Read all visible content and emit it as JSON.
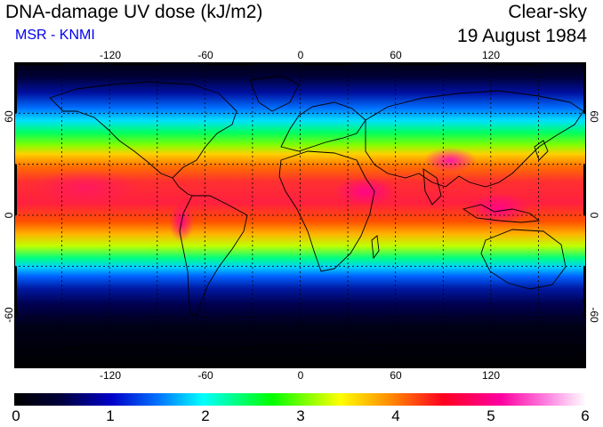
{
  "header": {
    "title": "DNA-damage UV dose (kJ/m2)",
    "source": "MSR - KNMI",
    "sky_condition": "Clear-sky",
    "date": "19 August 1984"
  },
  "map": {
    "projection": "equirectangular",
    "lon_range": [
      -180,
      180
    ],
    "lat_range": [
      -90,
      90
    ],
    "lon_ticks": [
      "-120",
      "-60",
      "0",
      "60",
      "120"
    ],
    "lat_ticks_left": [
      "60",
      "0",
      "-60"
    ],
    "lat_ticks_right": [
      "60",
      "0",
      "-60"
    ],
    "gridlines": "dashed every 30 degrees"
  },
  "colorbar": {
    "labels": [
      "0",
      "1",
      "2",
      "3",
      "4",
      "5",
      "6"
    ],
    "colors": [
      "#000000",
      "#00008b",
      "#0044ff",
      "#00ffff",
      "#00ff00",
      "#ffff00",
      "#ff8800",
      "#ff0033",
      "#ff00aa",
      "#ffffff"
    ]
  }
}
